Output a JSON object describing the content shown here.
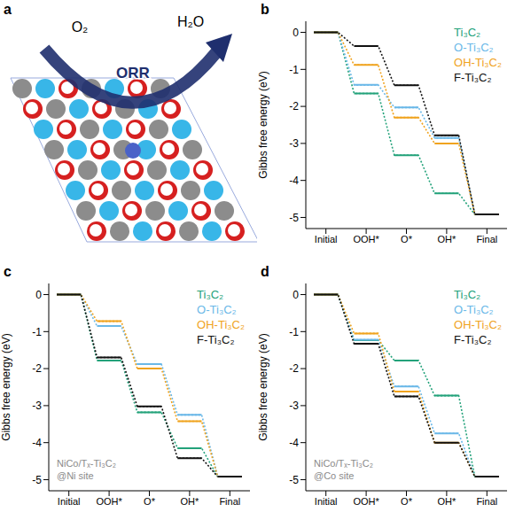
{
  "diagram": {
    "panel": "a",
    "labels": [
      "O₂",
      "ORR",
      "H₂O"
    ]
  },
  "chart_data": [
    {
      "type": "line",
      "panel": "b",
      "y_label": "Gibbs free energy (eV)",
      "categories": [
        "Initial",
        "OOH*",
        "O*",
        "OH*",
        "Final"
      ],
      "series": [
        {
          "name": "Ti₃C₂",
          "color": "#23a27a",
          "values": [
            0,
            -1.65,
            -3.32,
            -4.35,
            -4.92
          ]
        },
        {
          "name": "O-Ti₃C₂",
          "color": "#6ab8e8",
          "values": [
            0,
            -1.42,
            -2.03,
            -2.85,
            -4.92
          ]
        },
        {
          "name": "OH-Ti₃C₂",
          "color": "#f0a31e",
          "values": [
            0,
            -0.88,
            -2.3,
            -3.0,
            -4.92
          ]
        },
        {
          "name": "F-Ti₃C₂",
          "color": "#111111",
          "values": [
            0,
            -0.37,
            -1.43,
            -2.78,
            -4.92
          ]
        }
      ],
      "ylim": [
        -5.3,
        0.3
      ],
      "yticks": [
        0,
        -1,
        -2,
        -3,
        -4,
        -5
      ],
      "legend": "upper right",
      "grid": false
    },
    {
      "type": "line",
      "panel": "c",
      "y_label": "Gibbs free energy (eV)",
      "annotation": [
        "NiCo/Tₓ-Ti₃C₂",
        "@Ni site"
      ],
      "categories": [
        "Initial",
        "OOH*",
        "O*",
        "OH*",
        "Final"
      ],
      "series": [
        {
          "name": "Ti₃C₂",
          "color": "#23a27a",
          "values": [
            0,
            -1.78,
            -3.18,
            -4.15,
            -4.92
          ]
        },
        {
          "name": "O-Ti₃C₂",
          "color": "#6ab8e8",
          "values": [
            0,
            -0.85,
            -1.88,
            -3.25,
            -4.92
          ]
        },
        {
          "name": "OH-Ti₃C₂",
          "color": "#f0a31e",
          "values": [
            0,
            -0.72,
            -2.0,
            -3.42,
            -4.92
          ]
        },
        {
          "name": "F-Ti₃C₂",
          "color": "#111111",
          "values": [
            0,
            -1.7,
            -3.02,
            -4.42,
            -4.92
          ]
        }
      ],
      "ylim": [
        -5.3,
        0.3
      ],
      "yticks": [
        0,
        -1,
        -2,
        -3,
        -4,
        -5
      ],
      "legend": "upper right",
      "grid": false
    },
    {
      "type": "line",
      "panel": "d",
      "y_label": "Gibbs free energy (eV)",
      "annotation": [
        "NiCo/Tₓ-Ti₃C₂",
        "@Co site"
      ],
      "categories": [
        "Initial",
        "OOH*",
        "O*",
        "OH*",
        "Final"
      ],
      "series": [
        {
          "name": "Ti₃C₂",
          "color": "#23a27a",
          "values": [
            0,
            -1.23,
            -1.78,
            -2.73,
            -4.92
          ]
        },
        {
          "name": "O-Ti₃C₂",
          "color": "#6ab8e8",
          "values": [
            0,
            -1.22,
            -2.48,
            -3.75,
            -4.92
          ]
        },
        {
          "name": "OH-Ti₃C₂",
          "color": "#f0a31e",
          "values": [
            0,
            -1.05,
            -2.62,
            -4.0,
            -4.92
          ]
        },
        {
          "name": "F-Ti₃C₂",
          "color": "#111111",
          "values": [
            0,
            -1.33,
            -2.75,
            -4.0,
            -4.92
          ]
        }
      ],
      "ylim": [
        -5.3,
        0.3
      ],
      "yticks": [
        0,
        -1,
        -2,
        -3,
        -4,
        -5
      ],
      "legend": "upper right",
      "grid": false
    }
  ]
}
